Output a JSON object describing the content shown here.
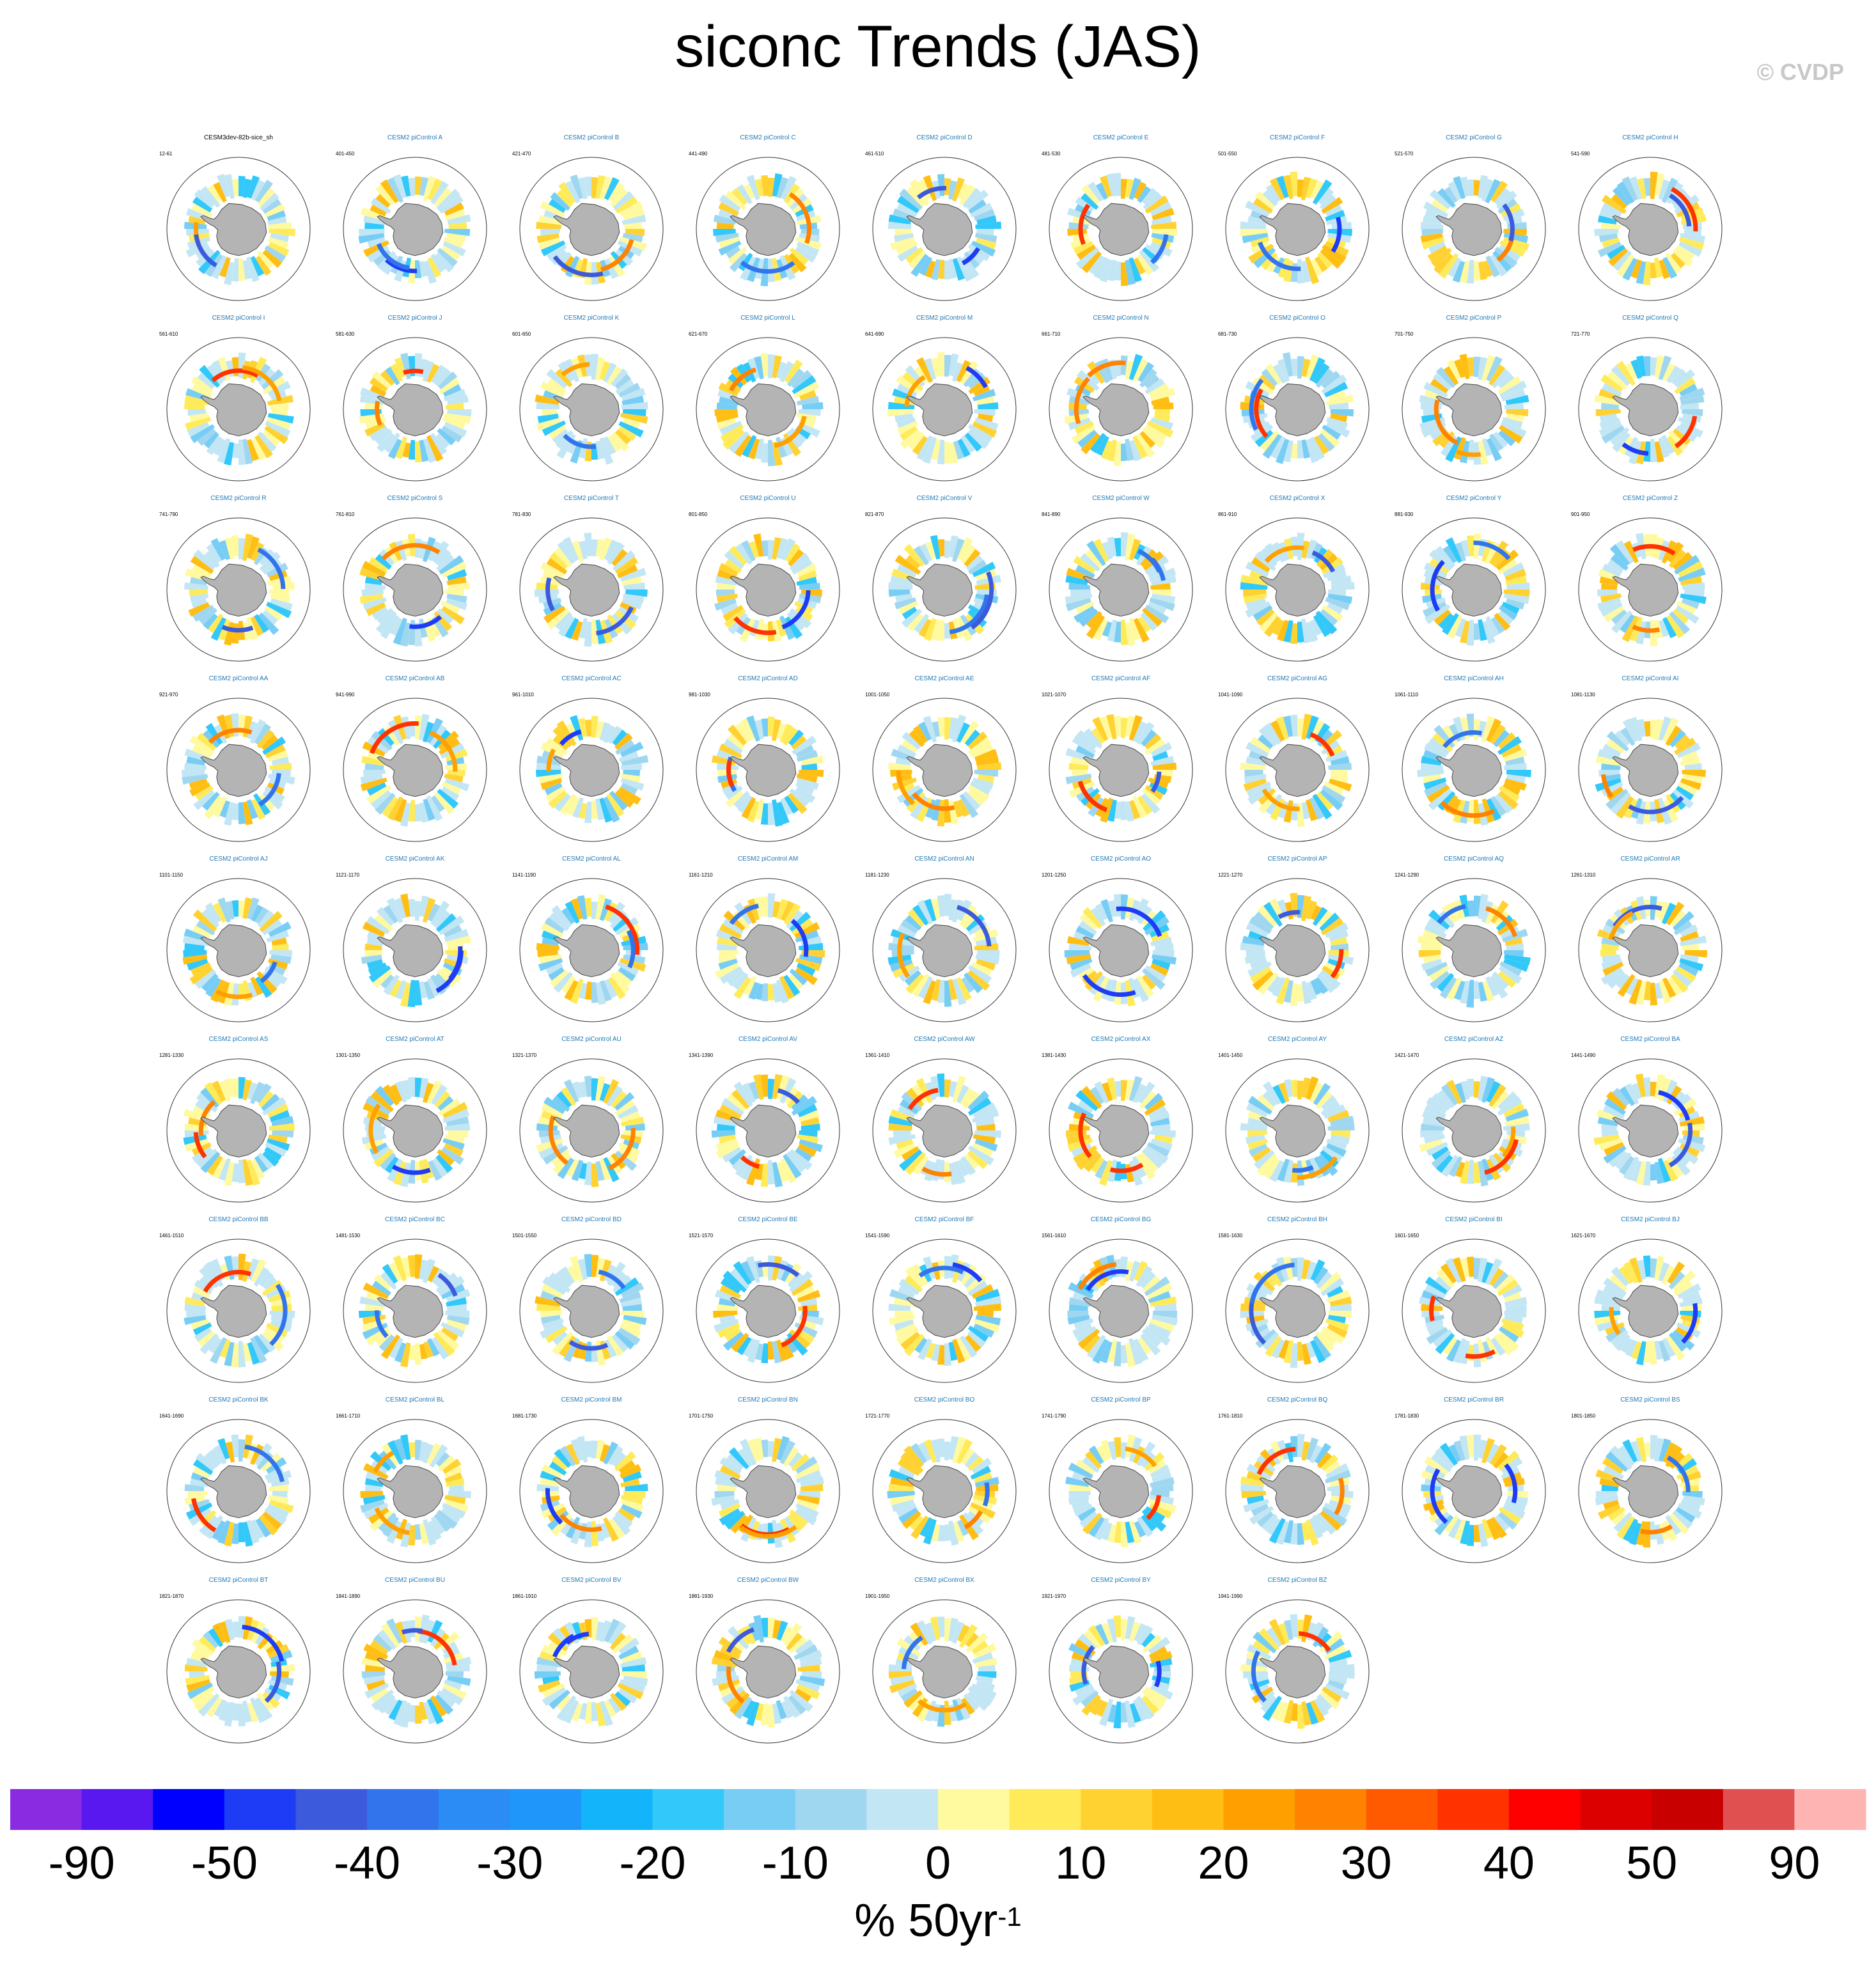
{
  "title": "siconc Trends (JAS)",
  "copyright": "© CVDP",
  "chart_data": {
    "type": "heatmap",
    "map_projection": "south polar stereographic",
    "variable": "siconc",
    "season": "JAS",
    "panels": [
      {
        "name": "CESM3dev-82b-sice_sh",
        "years": "12-61"
      },
      {
        "name": "CESM2 piControl A",
        "years": "401-450"
      },
      {
        "name": "CESM2 piControl B",
        "years": "421-470"
      },
      {
        "name": "CESM2 piControl C",
        "years": "441-490"
      },
      {
        "name": "CESM2 piControl D",
        "years": "461-510"
      },
      {
        "name": "CESM2 piControl E",
        "years": "481-530"
      },
      {
        "name": "CESM2 piControl F",
        "years": "501-550"
      },
      {
        "name": "CESM2 piControl G",
        "years": "521-570"
      },
      {
        "name": "CESM2 piControl H",
        "years": "541-590"
      },
      {
        "name": "CESM2 piControl I",
        "years": "561-610"
      },
      {
        "name": "CESM2 piControl J",
        "years": "581-630"
      },
      {
        "name": "CESM2 piControl K",
        "years": "601-650"
      },
      {
        "name": "CESM2 piControl L",
        "years": "621-670"
      },
      {
        "name": "CESM2 piControl M",
        "years": "641-690"
      },
      {
        "name": "CESM2 piControl N",
        "years": "661-710"
      },
      {
        "name": "CESM2 piControl O",
        "years": "681-730"
      },
      {
        "name": "CESM2 piControl P",
        "years": "701-750"
      },
      {
        "name": "CESM2 piControl Q",
        "years": "721-770"
      },
      {
        "name": "CESM2 piControl R",
        "years": "741-790"
      },
      {
        "name": "CESM2 piControl S",
        "years": "761-810"
      },
      {
        "name": "CESM2 piControl T",
        "years": "781-830"
      },
      {
        "name": "CESM2 piControl U",
        "years": "801-850"
      },
      {
        "name": "CESM2 piControl V",
        "years": "821-870"
      },
      {
        "name": "CESM2 piControl W",
        "years": "841-890"
      },
      {
        "name": "CESM2 piControl X",
        "years": "861-910"
      },
      {
        "name": "CESM2 piControl Y",
        "years": "881-930"
      },
      {
        "name": "CESM2 piControl Z",
        "years": "901-950"
      },
      {
        "name": "CESM2 piControl AA",
        "years": "921-970"
      },
      {
        "name": "CESM2 piControl AB",
        "years": "941-990"
      },
      {
        "name": "CESM2 piControl AC",
        "years": "961-1010"
      },
      {
        "name": "CESM2 piControl AD",
        "years": "981-1030"
      },
      {
        "name": "CESM2 piControl AE",
        "years": "1001-1050"
      },
      {
        "name": "CESM2 piControl AF",
        "years": "1021-1070"
      },
      {
        "name": "CESM2 piControl AG",
        "years": "1041-1090"
      },
      {
        "name": "CESM2 piControl AH",
        "years": "1061-1110"
      },
      {
        "name": "CESM2 piControl AI",
        "years": "1081-1130"
      },
      {
        "name": "CESM2 piControl AJ",
        "years": "1101-1150"
      },
      {
        "name": "CESM2 piControl AK",
        "years": "1121-1170"
      },
      {
        "name": "CESM2 piControl AL",
        "years": "1141-1190"
      },
      {
        "name": "CESM2 piControl AM",
        "years": "1161-1210"
      },
      {
        "name": "CESM2 piControl AN",
        "years": "1181-1230"
      },
      {
        "name": "CESM2 piControl AO",
        "years": "1201-1250"
      },
      {
        "name": "CESM2 piControl AP",
        "years": "1221-1270"
      },
      {
        "name": "CESM2 piControl AQ",
        "years": "1241-1290"
      },
      {
        "name": "CESM2 piControl AR",
        "years": "1261-1310"
      },
      {
        "name": "CESM2 piControl AS",
        "years": "1281-1330"
      },
      {
        "name": "CESM2 piControl AT",
        "years": "1301-1350"
      },
      {
        "name": "CESM2 piControl AU",
        "years": "1321-1370"
      },
      {
        "name": "CESM2 piControl AV",
        "years": "1341-1390"
      },
      {
        "name": "CESM2 piControl AW",
        "years": "1361-1410"
      },
      {
        "name": "CESM2 piControl AX",
        "years": "1381-1430"
      },
      {
        "name": "CESM2 piControl AY",
        "years": "1401-1450"
      },
      {
        "name": "CESM2 piControl AZ",
        "years": "1421-1470"
      },
      {
        "name": "CESM2 piControl BA",
        "years": "1441-1490"
      },
      {
        "name": "CESM2 piControl BB",
        "years": "1461-1510"
      },
      {
        "name": "CESM2 piControl BC",
        "years": "1481-1530"
      },
      {
        "name": "CESM2 piControl BD",
        "years": "1501-1550"
      },
      {
        "name": "CESM2 piControl BE",
        "years": "1521-1570"
      },
      {
        "name": "CESM2 piControl BF",
        "years": "1541-1590"
      },
      {
        "name": "CESM2 piControl BG",
        "years": "1561-1610"
      },
      {
        "name": "CESM2 piControl BH",
        "years": "1581-1630"
      },
      {
        "name": "CESM2 piControl BI",
        "years": "1601-1650"
      },
      {
        "name": "CESM2 piControl BJ",
        "years": "1621-1670"
      },
      {
        "name": "CESM2 piControl BK",
        "years": "1641-1690"
      },
      {
        "name": "CESM2 piControl BL",
        "years": "1661-1710"
      },
      {
        "name": "CESM2 piControl BM",
        "years": "1681-1730"
      },
      {
        "name": "CESM2 piControl BN",
        "years": "1701-1750"
      },
      {
        "name": "CESM2 piControl BO",
        "years": "1721-1770"
      },
      {
        "name": "CESM2 piControl BP",
        "years": "1741-1790"
      },
      {
        "name": "CESM2 piControl BQ",
        "years": "1761-1810"
      },
      {
        "name": "CESM2 piControl BR",
        "years": "1781-1830"
      },
      {
        "name": "CESM2 piControl BS",
        "years": "1801-1850"
      },
      {
        "name": "CESM2 piControl BT",
        "years": "1821-1870"
      },
      {
        "name": "CESM2 piControl BU",
        "years": "1841-1890"
      },
      {
        "name": "CESM2 piControl BV",
        "years": "1861-1910"
      },
      {
        "name": "CESM2 piControl BW",
        "years": "1881-1930"
      },
      {
        "name": "CESM2 piControl BX",
        "years": "1901-1950"
      },
      {
        "name": "CESM2 piControl BY",
        "years": "1921-1970"
      },
      {
        "name": "CESM2 piControl BZ",
        "years": "1941-1990"
      }
    ],
    "colorbar": {
      "labels": [
        "-90",
        "-50",
        "-40",
        "-30",
        "-20",
        "-10",
        "0",
        "10",
        "20",
        "30",
        "40",
        "50",
        "90"
      ],
      "colors": [
        "#8a2be2",
        "#5a18f0",
        "#0000ff",
        "#1e3cf5",
        "#3c5adc",
        "#3274ec",
        "#2a8cf4",
        "#1e96fa",
        "#14b4fa",
        "#32c8fa",
        "#78cdf5",
        "#a0d7f0",
        "#c3e6f5",
        "#fffaa0",
        "#ffeb5a",
        "#ffd232",
        "#ffbe14",
        "#ffa000",
        "#ff8200",
        "#ff5a00",
        "#ff3200",
        "#ff0000",
        "#dc0000",
        "#c80000",
        "#e05050",
        "#ffb4b4"
      ],
      "units_text": "% 50yr",
      "units_superscript": "-1"
    }
  }
}
